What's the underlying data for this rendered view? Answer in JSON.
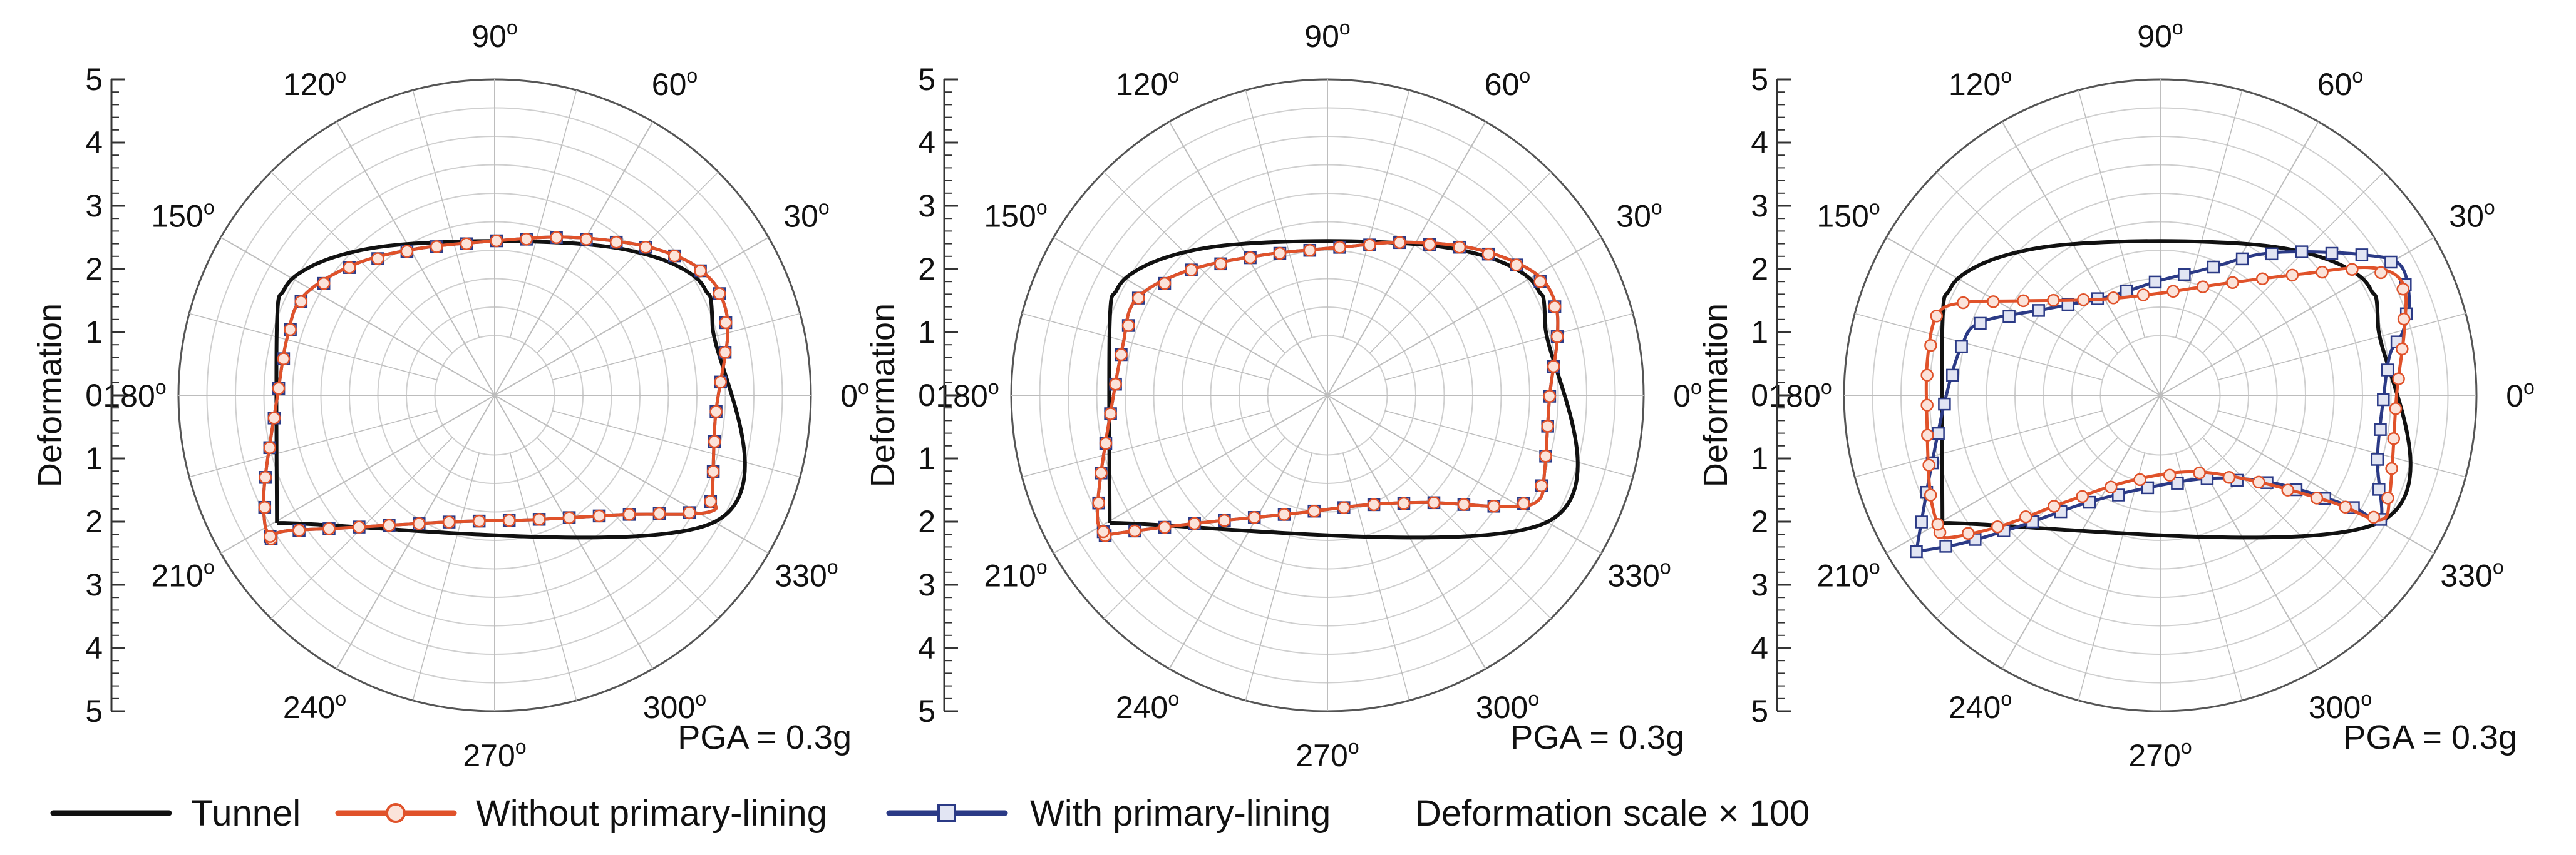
{
  "colors": {
    "tunnel": "#111111",
    "without": "#e0522a",
    "with": "#2b3a86",
    "note": "#2b3a9c",
    "grid": "#cfcfcf",
    "spoke": "#bdbdbd"
  },
  "legend": {
    "tunnel": "Tunnel",
    "without": "Without primary-lining",
    "with": "With primary-lining",
    "note": "Deformation scale × 100"
  },
  "chart_data": [
    {
      "type": "polar-line",
      "panel": "left",
      "axis_label": "Deformation",
      "axis_ticks": [
        "5",
        "4",
        "3",
        "2",
        "1",
        "0",
        "1",
        "2",
        "3",
        "4",
        "5"
      ],
      "angle_labels": [
        "0",
        "30",
        "60",
        "90",
        "120",
        "150",
        "180",
        "210",
        "240",
        "270",
        "300",
        "330"
      ],
      "angle_unit": "o",
      "annotation": "PGA = 0.3g",
      "series": [
        {
          "name": "Tunnel",
          "points": [
            [
              -3.41,
              -2.0
            ],
            [
              -3.41,
              1.1
            ],
            [
              -3.3,
              1.65
            ],
            [
              -3.0,
              1.95
            ],
            [
              -2.4,
              2.2
            ],
            [
              -1.5,
              2.36
            ],
            [
              0,
              2.42
            ],
            [
              1.5,
              2.36
            ],
            [
              2.4,
              2.2
            ],
            [
              3.0,
              1.95
            ],
            [
              3.3,
              1.65
            ],
            [
              3.41,
              1.1
            ],
            [
              3.41,
              -2.0
            ],
            [
              -3.41,
              -2.0
            ]
          ]
        },
        {
          "name": "Without primary-lining",
          "points": [
            [
              -3.5,
              -2.25
            ],
            [
              -3.3,
              -2.13
            ],
            [
              -2.4,
              -2.08
            ],
            [
              -0.6,
              -1.98
            ],
            [
              0.6,
              -1.95
            ],
            [
              2.0,
              -1.87
            ],
            [
              3.35,
              -1.83
            ],
            [
              3.41,
              -1.5
            ],
            [
              3.46,
              -0.3
            ],
            [
              3.65,
              0.95
            ],
            [
              3.55,
              1.55
            ],
            [
              3.3,
              1.9
            ],
            [
              2.9,
              2.16
            ],
            [
              2.2,
              2.37
            ],
            [
              1.1,
              2.48
            ],
            [
              0,
              2.42
            ],
            [
              -1.2,
              2.3
            ],
            [
              -2.2,
              2.05
            ],
            [
              -3.0,
              1.55
            ],
            [
              -3.25,
              0.9
            ],
            [
              -3.4,
              0.0
            ],
            [
              -3.6,
              -1.35
            ],
            [
              -3.6,
              -2.0
            ],
            [
              -3.5,
              -2.25
            ]
          ]
        },
        {
          "name": "With primary-lining",
          "points": [
            [
              -3.5,
              -2.25
            ],
            [
              -3.3,
              -2.13
            ],
            [
              -2.4,
              -2.08
            ],
            [
              -0.6,
              -1.98
            ],
            [
              0.6,
              -1.95
            ],
            [
              2.0,
              -1.87
            ],
            [
              3.35,
              -1.83
            ],
            [
              3.41,
              -1.5
            ],
            [
              3.46,
              -0.3
            ],
            [
              3.65,
              0.95
            ],
            [
              3.55,
              1.55
            ],
            [
              3.3,
              1.9
            ],
            [
              2.9,
              2.16
            ],
            [
              2.2,
              2.37
            ],
            [
              1.1,
              2.48
            ],
            [
              0,
              2.42
            ],
            [
              -1.2,
              2.3
            ],
            [
              -2.2,
              2.05
            ],
            [
              -3.0,
              1.55
            ],
            [
              -3.25,
              0.9
            ],
            [
              -3.4,
              0.0
            ],
            [
              -3.6,
              -1.35
            ],
            [
              -3.6,
              -2.0
            ],
            [
              -3.5,
              -2.25
            ]
          ]
        }
      ]
    },
    {
      "type": "polar-line",
      "panel": "middle",
      "axis_label": "Deformation",
      "axis_ticks": [
        "5",
        "4",
        "3",
        "2",
        "1",
        "0",
        "1",
        "2",
        "3",
        "4",
        "5"
      ],
      "angle_labels": [
        "0",
        "30",
        "60",
        "90",
        "120",
        "150",
        "180",
        "210",
        "240",
        "270",
        "300",
        "330"
      ],
      "angle_unit": "o",
      "annotation": "PGA = 0.3g",
      "series": [
        {
          "name": "Tunnel",
          "points": [
            [
              -3.41,
              -2.0
            ],
            [
              -3.41,
              1.1
            ],
            [
              -3.3,
              1.65
            ],
            [
              -3.0,
              1.95
            ],
            [
              -2.4,
              2.2
            ],
            [
              -1.5,
              2.36
            ],
            [
              0,
              2.42
            ],
            [
              1.5,
              2.36
            ],
            [
              2.4,
              2.2
            ],
            [
              3.0,
              1.95
            ],
            [
              3.3,
              1.65
            ],
            [
              3.41,
              1.1
            ],
            [
              3.41,
              -2.0
            ],
            [
              -3.41,
              -2.0
            ]
          ]
        },
        {
          "name": "Without primary-lining",
          "points": [
            [
              -3.48,
              -2.2
            ],
            [
              -3.2,
              -2.15
            ],
            [
              -2.0,
              -2.0
            ],
            [
              -0.5,
              -1.85
            ],
            [
              0.6,
              -1.72
            ],
            [
              1.6,
              -1.68
            ],
            [
              2.8,
              -1.75
            ],
            [
              3.3,
              -1.65
            ],
            [
              3.4,
              -1.2
            ],
            [
              3.48,
              0.0
            ],
            [
              3.6,
              0.9
            ],
            [
              3.55,
              1.5
            ],
            [
              3.2,
              1.95
            ],
            [
              2.3,
              2.3
            ],
            [
              1.2,
              2.4
            ],
            [
              0.2,
              2.32
            ],
            [
              -1.0,
              2.2
            ],
            [
              -2.2,
              1.95
            ],
            [
              -3.0,
              1.5
            ],
            [
              -3.2,
              0.8
            ],
            [
              -3.35,
              0.0
            ],
            [
              -3.55,
              -1.25
            ],
            [
              -3.6,
              -1.95
            ],
            [
              -3.48,
              -2.2
            ]
          ]
        },
        {
          "name": "With primary-lining",
          "points": [
            [
              -3.48,
              -2.2
            ],
            [
              -3.2,
              -2.15
            ],
            [
              -2.0,
              -2.0
            ],
            [
              -0.5,
              -1.85
            ],
            [
              0.6,
              -1.72
            ],
            [
              1.6,
              -1.68
            ],
            [
              2.8,
              -1.75
            ],
            [
              3.3,
              -1.65
            ],
            [
              3.4,
              -1.2
            ],
            [
              3.48,
              0.0
            ],
            [
              3.6,
              0.9
            ],
            [
              3.55,
              1.5
            ],
            [
              3.2,
              1.95
            ],
            [
              2.3,
              2.3
            ],
            [
              1.2,
              2.4
            ],
            [
              0.2,
              2.32
            ],
            [
              -1.0,
              2.2
            ],
            [
              -2.2,
              1.95
            ],
            [
              -3.0,
              1.5
            ],
            [
              -3.2,
              0.8
            ],
            [
              -3.35,
              0.0
            ],
            [
              -3.55,
              -1.25
            ],
            [
              -3.6,
              -1.95
            ],
            [
              -3.48,
              -2.2
            ]
          ]
        }
      ]
    },
    {
      "type": "polar-line",
      "panel": "right",
      "axis_label": "Deformation",
      "axis_ticks": [
        "5",
        "4",
        "3",
        "2",
        "1",
        "0",
        "1",
        "2",
        "3",
        "4",
        "5"
      ],
      "angle_labels": [
        "0",
        "30",
        "60",
        "90",
        "120",
        "150",
        "180",
        "210",
        "240",
        "270",
        "300",
        "330"
      ],
      "angle_unit": "o",
      "annotation": "PGA = 0.3g",
      "series": [
        {
          "name": "Tunnel",
          "points": [
            [
              -3.41,
              -2.0
            ],
            [
              -3.41,
              1.1
            ],
            [
              -3.3,
              1.65
            ],
            [
              -3.0,
              1.95
            ],
            [
              -2.4,
              2.2
            ],
            [
              -1.5,
              2.36
            ],
            [
              0,
              2.42
            ],
            [
              1.5,
              2.36
            ],
            [
              2.4,
              2.2
            ],
            [
              3.0,
              1.95
            ],
            [
              3.3,
              1.65
            ],
            [
              3.41,
              1.1
            ],
            [
              3.41,
              -2.0
            ],
            [
              -3.41,
              -2.0
            ]
          ]
        },
        {
          "name": "Without primary-lining",
          "points": [
            [
              -3.45,
              -2.15
            ],
            [
              -3.3,
              -2.23
            ],
            [
              -2.5,
              -2.05
            ],
            [
              -1.5,
              -1.68
            ],
            [
              -0.5,
              -1.35
            ],
            [
              0.5,
              -1.2
            ],
            [
              1.5,
              -1.35
            ],
            [
              2.7,
              -1.68
            ],
            [
              3.45,
              -1.95
            ],
            [
              3.6,
              -1.5
            ],
            [
              3.7,
              0.0
            ],
            [
              3.82,
              1.0
            ],
            [
              3.8,
              1.75
            ],
            [
              3.3,
              2.0
            ],
            [
              2.2,
              1.9
            ],
            [
              1.0,
              1.75
            ],
            [
              0.0,
              1.6
            ],
            [
              -1.0,
              1.5
            ],
            [
              -2.2,
              1.48
            ],
            [
              -3.1,
              1.45
            ],
            [
              -3.5,
              1.25
            ],
            [
              -3.65,
              0.5
            ],
            [
              -3.65,
              -0.5
            ],
            [
              -3.6,
              -1.55
            ],
            [
              -3.45,
              -2.15
            ]
          ]
        },
        {
          "name": "With primary-lining",
          "points": [
            [
              -3.82,
              -2.45
            ],
            [
              -3.1,
              -2.32
            ],
            [
              -2.2,
              -2.05
            ],
            [
              -1.2,
              -1.7
            ],
            [
              -0.2,
              -1.45
            ],
            [
              0.8,
              -1.3
            ],
            [
              1.8,
              -1.38
            ],
            [
              3.0,
              -1.75
            ],
            [
              3.45,
              -1.95
            ],
            [
              3.4,
              -1.0
            ],
            [
              3.5,
              0.0
            ],
            [
              3.6,
              0.65
            ],
            [
              3.8,
              1.0
            ],
            [
              3.9,
              1.5
            ],
            [
              3.75,
              2.05
            ],
            [
              3.2,
              2.2
            ],
            [
              2.2,
              2.25
            ],
            [
              1.5,
              2.2
            ],
            [
              0.8,
              2.0
            ],
            [
              0.0,
              1.8
            ],
            [
              -0.8,
              1.55
            ],
            [
              -1.8,
              1.35
            ],
            [
              -2.8,
              1.15
            ],
            [
              -3.1,
              0.8
            ],
            [
              -3.35,
              0.0
            ],
            [
              -3.6,
              -1.2
            ],
            [
              -3.82,
              -2.45
            ]
          ]
        }
      ]
    }
  ]
}
